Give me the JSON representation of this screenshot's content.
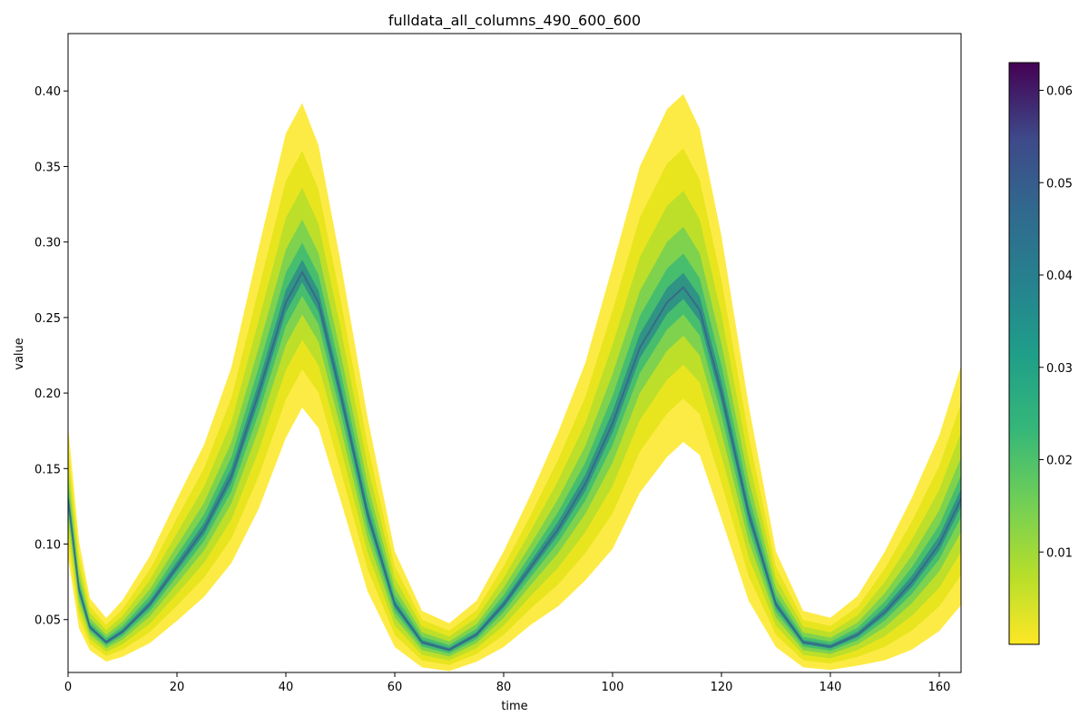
{
  "chart_data": {
    "type": "heatmap",
    "title": "fulldata_all_columns_490_600_600",
    "xlabel": "time",
    "ylabel": "value",
    "xlim": [
      0,
      164
    ],
    "ylim": [
      0.015,
      0.438
    ],
    "x_ticks": [
      0,
      20,
      40,
      60,
      80,
      100,
      120,
      140,
      160
    ],
    "x_tick_labels": [
      "0",
      "20",
      "40",
      "60",
      "80",
      "100",
      "120",
      "140",
      "160"
    ],
    "y_ticks": [
      0.05,
      0.1,
      0.15,
      0.2,
      0.25,
      0.3,
      0.35,
      0.4
    ],
    "y_tick_labels": [
      "0.05",
      "0.10",
      "0.15",
      "0.20",
      "0.25",
      "0.30",
      "0.35",
      "0.40"
    ],
    "colorbar": {
      "colormap": "viridis_r",
      "range": [
        0.0,
        0.063
      ],
      "ticks": [
        0.01,
        0.02,
        0.03,
        0.04,
        0.05,
        0.06
      ],
      "tick_labels": [
        "0.01",
        "0.02",
        "0.03",
        "0.04",
        "0.05",
        "0.06"
      ]
    },
    "density_ridge": {
      "x": [
        0,
        2,
        4,
        7,
        10,
        15,
        20,
        25,
        30,
        35,
        40,
        43,
        46,
        50,
        55,
        60,
        65,
        70,
        75,
        80,
        85,
        90,
        95,
        100,
        105,
        110,
        113,
        116,
        120,
        125,
        130,
        135,
        140,
        145,
        150,
        155,
        160,
        164
      ],
      "y": [
        0.13,
        0.07,
        0.045,
        0.035,
        0.042,
        0.06,
        0.085,
        0.11,
        0.145,
        0.2,
        0.26,
        0.28,
        0.26,
        0.2,
        0.12,
        0.06,
        0.035,
        0.03,
        0.04,
        0.06,
        0.085,
        0.11,
        0.14,
        0.18,
        0.23,
        0.26,
        0.27,
        0.255,
        0.2,
        0.12,
        0.06,
        0.035,
        0.032,
        0.04,
        0.055,
        0.075,
        0.1,
        0.13
      ],
      "spread": [
        0.03,
        0.02,
        0.012,
        0.01,
        0.013,
        0.02,
        0.028,
        0.035,
        0.045,
        0.06,
        0.07,
        0.07,
        0.065,
        0.055,
        0.04,
        0.022,
        0.013,
        0.011,
        0.014,
        0.022,
        0.03,
        0.04,
        0.05,
        0.065,
        0.075,
        0.08,
        0.08,
        0.075,
        0.065,
        0.045,
        0.022,
        0.013,
        0.012,
        0.016,
        0.025,
        0.035,
        0.045,
        0.055
      ]
    }
  }
}
